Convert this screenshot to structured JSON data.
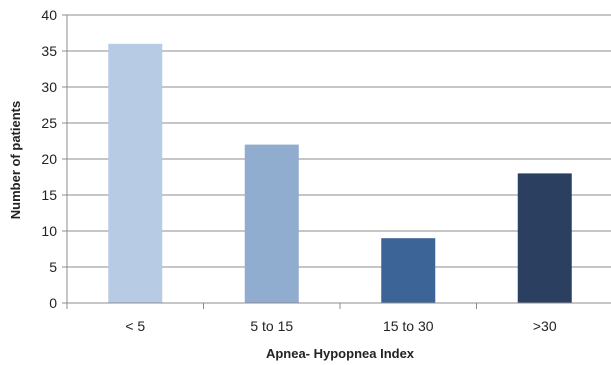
{
  "chart_data": {
    "type": "bar",
    "categories": [
      "< 5",
      "5 to 15",
      "15 to 30",
      ">30"
    ],
    "values": [
      36,
      22,
      9,
      18
    ],
    "bar_colors": [
      "#b7cce4",
      "#90accf",
      "#3c6497",
      "#2b3f60"
    ],
    "xlabel": "Apnea- Hypopnea Index",
    "ylabel": "Number of patients",
    "ylim": [
      0,
      40
    ],
    "yticks": [
      0,
      5,
      10,
      15,
      20,
      25,
      30,
      35,
      40
    ],
    "grid": true,
    "legend": false,
    "colors": {
      "grid": "#8c8c8c",
      "axis": "#8c8c8c",
      "text": "#222222"
    }
  }
}
